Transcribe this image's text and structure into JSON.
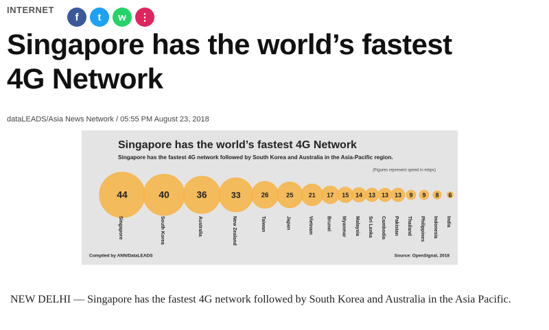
{
  "header": {
    "section": "INTERNET",
    "share": [
      "f",
      "t",
      "w",
      "⋮"
    ]
  },
  "article": {
    "title_lines": [
      "Singapore has the world’s fastest",
      "4G Network"
    ],
    "byline": "dataLEADS/Asia News Network / 05:55 PM August 23, 2018",
    "body": "NEW DELHI — Singapore has the fastest 4G network followed by South Korea and Australia in the Asia Pacific."
  },
  "chart_data": {
    "type": "bubble",
    "title": "Singapore has the world’s fastest 4G Network",
    "subtitle": "Singapore has the fastest 4G network followed by South Korea and Australia in the Asia-Pacific region.",
    "note": "(Figures represent speed in mbps)",
    "credit": "Compiled by ANN/DataLEADS",
    "source": "Source: OpenSignal, 2018",
    "categories": [
      "Singapore",
      "South Korea",
      "Australia",
      "New Zealand",
      "Taiwan",
      "Japan",
      "Vietnam",
      "Brunei",
      "Myanmar",
      "Malaysia",
      "Sri Lanka",
      "Cambodia",
      "Pakistan",
      "Thailand",
      "Philippines",
      "Indonesia",
      "India"
    ],
    "values": [
      44,
      40,
      36,
      33,
      26,
      25,
      21,
      17,
      15,
      14,
      13,
      13,
      13,
      9,
      9,
      8,
      6
    ],
    "color": "#f7b445"
  }
}
